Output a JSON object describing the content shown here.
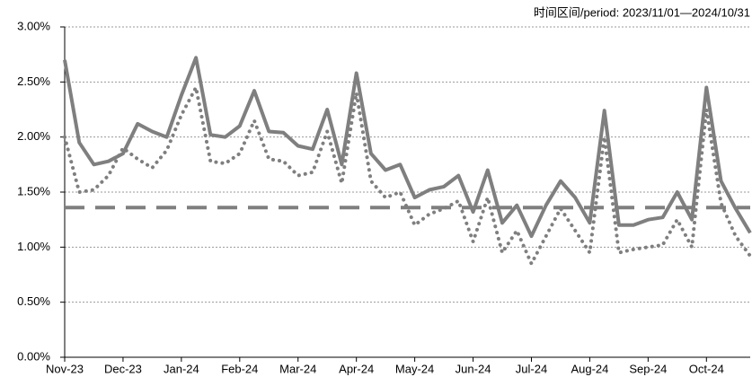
{
  "chart_data": {
    "type": "line",
    "annotation": "时间区间/period: 2023/11/01—2024/10/31",
    "categories": [
      "Nov-23",
      null,
      null,
      null,
      "Dec-23",
      null,
      null,
      null,
      "Jan-24",
      null,
      null,
      null,
      "Feb-24",
      null,
      null,
      null,
      "Mar-24",
      null,
      null,
      null,
      "Apr-24",
      null,
      null,
      null,
      "May-24",
      null,
      null,
      null,
      "Jun-24",
      null,
      null,
      null,
      "Jul-24",
      null,
      null,
      null,
      "Aug-24",
      null,
      null,
      null,
      "Sep-24",
      null,
      null,
      null,
      "Oct-24",
      null,
      null,
      null
    ],
    "series": [
      {
        "color": "#7f7f7f",
        "line_style": "solid",
        "values": [
          2.7,
          1.95,
          1.75,
          1.78,
          1.85,
          2.12,
          2.05,
          2.0,
          2.38,
          2.72,
          2.02,
          2.0,
          2.1,
          2.42,
          2.05,
          2.04,
          1.92,
          1.89,
          2.25,
          1.75,
          2.58,
          1.85,
          1.7,
          1.75,
          1.45,
          1.52,
          1.55,
          1.65,
          1.32,
          1.7,
          1.22,
          1.38,
          1.1,
          1.38,
          1.6,
          1.45,
          1.22,
          2.24,
          1.2,
          1.2,
          1.25,
          1.27,
          1.5,
          1.25,
          2.45,
          1.6,
          1.35,
          1.13
        ]
      },
      {
        "color": "#7f7f7f",
        "line_style": "dotted",
        "values": [
          2.0,
          1.5,
          1.52,
          1.65,
          1.9,
          1.8,
          1.72,
          1.88,
          2.2,
          2.45,
          1.78,
          1.76,
          1.85,
          2.15,
          1.8,
          1.78,
          1.65,
          1.68,
          2.05,
          1.58,
          2.4,
          1.6,
          1.45,
          1.5,
          1.2,
          1.3,
          1.35,
          1.42,
          1.05,
          1.45,
          0.95,
          1.15,
          0.85,
          1.1,
          1.35,
          1.15,
          0.95,
          2.0,
          0.95,
          0.98,
          1.0,
          1.02,
          1.25,
          1.0,
          2.25,
          1.4,
          1.1,
          0.92
        ]
      },
      {
        "color": "#7f7f7f",
        "line_style": "dashed",
        "values": [
          1.36,
          1.36,
          1.36,
          1.36,
          1.36,
          1.36,
          1.36,
          1.36,
          1.36,
          1.36,
          1.36,
          1.36,
          1.36,
          1.36,
          1.36,
          1.36,
          1.36,
          1.36,
          1.36,
          1.36,
          1.36,
          1.36,
          1.36,
          1.36,
          1.36,
          1.36,
          1.36,
          1.36,
          1.36,
          1.36,
          1.36,
          1.36,
          1.36,
          1.36,
          1.36,
          1.36,
          1.36,
          1.36,
          1.36,
          1.36,
          1.36,
          1.36,
          1.36,
          1.36,
          1.36,
          1.36,
          1.36,
          1.36
        ]
      }
    ],
    "ylim": [
      0,
      3
    ],
    "yticks": [
      {
        "value": 0,
        "label": "0.00%"
      },
      {
        "value": 0.5,
        "label": "0.50%"
      },
      {
        "value": 1,
        "label": "1.00%"
      },
      {
        "value": 1.5,
        "label": "1.50%"
      },
      {
        "value": 2,
        "label": "2.00%"
      },
      {
        "value": 2.5,
        "label": "2.50%"
      },
      {
        "value": 3,
        "label": "3.00%"
      }
    ],
    "grid": true
  }
}
